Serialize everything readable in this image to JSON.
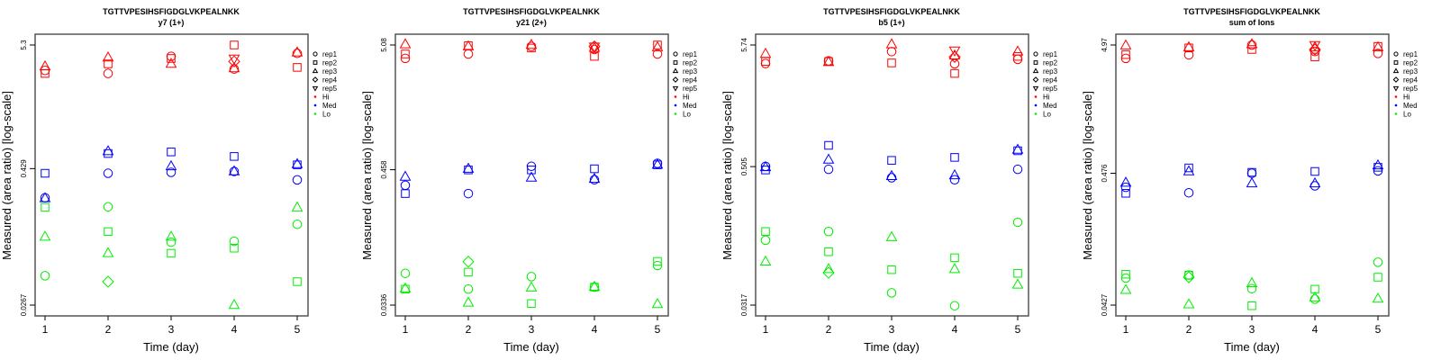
{
  "colors": {
    "Hi": "#ff0000",
    "Med": "#0000ff",
    "Lo": "#00ee00"
  },
  "legend": {
    "reps": [
      {
        "label": "rep1",
        "shape": "circle"
      },
      {
        "label": "rep2",
        "shape": "square"
      },
      {
        "label": "rep3",
        "shape": "triangle"
      },
      {
        "label": "rep4",
        "shape": "diamond"
      },
      {
        "label": "rep5",
        "shape": "inverted-triangle"
      }
    ],
    "groups": [
      "Hi",
      "Med",
      "Lo"
    ]
  },
  "chart_data": [
    {
      "type": "scatter",
      "title": "TGTTVPESIHSFIGDGLVKPEALNKK",
      "subtitle": "y7 (1+)",
      "xlabel": "Time (day)",
      "ylabel": "Measured (area ratio) [log-scale]",
      "yscale": "log",
      "yticks": [
        0.0267,
        0.429,
        5.3
      ],
      "ytick_labels": [
        "0.0267",
        "0.429",
        "5.3"
      ],
      "xticks": [
        "1",
        "2",
        "3",
        "4",
        "5"
      ],
      "legend_position": "right",
      "series": {
        "Hi": [
          [
            1,
            "rep1",
            3.16
          ],
          [
            1,
            "rep2",
            2.97
          ],
          [
            1,
            "rep3",
            3.42
          ],
          [
            2,
            "rep1",
            2.97
          ],
          [
            2,
            "rep2",
            3.61
          ],
          [
            2,
            "rep3",
            4.1
          ],
          [
            3,
            "rep1",
            4.21
          ],
          [
            3,
            "rep2",
            4.03
          ],
          [
            3,
            "rep3",
            3.61
          ],
          [
            4,
            "rep1",
            3.25
          ],
          [
            4,
            "rep2",
            5.3
          ],
          [
            4,
            "rep3",
            3.29
          ],
          [
            4,
            "rep4",
            3.79
          ],
          [
            4,
            "rep5",
            4.03
          ],
          [
            5,
            "rep1",
            4.47
          ],
          [
            5,
            "rep2",
            3.36
          ],
          [
            5,
            "rep3",
            4.55
          ]
        ],
        "Med": [
          [
            1,
            "rep1",
            0.237
          ],
          [
            1,
            "rep2",
            0.39
          ],
          [
            1,
            "rep3",
            0.234
          ],
          [
            2,
            "rep1",
            0.39
          ],
          [
            2,
            "rep2",
            0.583
          ],
          [
            2,
            "rep3",
            0.609
          ],
          [
            3,
            "rep1",
            0.397
          ],
          [
            3,
            "rep2",
            0.602
          ],
          [
            3,
            "rep3",
            0.449
          ],
          [
            4,
            "rep1",
            0.405
          ],
          [
            4,
            "rep2",
            0.549
          ],
          [
            4,
            "rep3",
            0.405
          ],
          [
            5,
            "rep1",
            0.341
          ],
          [
            5,
            "rep2",
            0.463
          ],
          [
            5,
            "rep3",
            0.469
          ]
        ],
        "Lo": [
          [
            1,
            "rep1",
            0.0485
          ],
          [
            1,
            "rep2",
            0.195
          ],
          [
            1,
            "rep3",
            0.107
          ],
          [
            2,
            "rep1",
            0.197
          ],
          [
            2,
            "rep2",
            0.119
          ],
          [
            2,
            "rep3",
            0.0766
          ],
          [
            2,
            "rep4",
            0.043
          ],
          [
            3,
            "rep1",
            0.096
          ],
          [
            3,
            "rep2",
            0.0766
          ],
          [
            3,
            "rep3",
            0.107
          ],
          [
            4,
            "rep1",
            0.0978
          ],
          [
            4,
            "rep2",
            0.085
          ],
          [
            4,
            "rep3",
            0.0267
          ],
          [
            5,
            "rep1",
            0.138
          ],
          [
            5,
            "rep2",
            0.043
          ],
          [
            5,
            "rep3",
            0.194
          ]
        ]
      }
    },
    {
      "type": "scatter",
      "title": "TGTTVPESIHSFIGDGLVKPEALNKK",
      "subtitle": "y21 (2+)",
      "xlabel": "Time (day)",
      "ylabel": "Measured (area ratio) [log-scale]",
      "yscale": "log",
      "yticks": [
        0.0336,
        0.458,
        5.08
      ],
      "ytick_labels": [
        "0.0336",
        "0.458",
        "5.08"
      ],
      "xticks": [
        "1",
        "2",
        "3",
        "4",
        "5"
      ],
      "legend_position": "right",
      "series": {
        "Hi": [
          [
            1,
            "rep1",
            3.92
          ],
          [
            1,
            "rep2",
            4.27
          ],
          [
            1,
            "rep3",
            5.14
          ],
          [
            2,
            "rep1",
            4.27
          ],
          [
            2,
            "rep2",
            5.02
          ],
          [
            2,
            "rep3",
            4.94
          ],
          [
            3,
            "rep1",
            4.94
          ],
          [
            3,
            "rep2",
            4.79
          ],
          [
            3,
            "rep3",
            5.08
          ],
          [
            4,
            "rep1",
            4.66
          ],
          [
            4,
            "rep2",
            4.08
          ],
          [
            4,
            "rep3",
            4.79
          ],
          [
            4,
            "rep4",
            4.94
          ],
          [
            4,
            "rep5",
            4.94
          ],
          [
            5,
            "rep1",
            4.27
          ],
          [
            5,
            "rep2",
            5.08
          ],
          [
            5,
            "rep3",
            4.85
          ]
        ],
        "Med": [
          [
            1,
            "rep1",
            0.339
          ],
          [
            1,
            "rep2",
            0.289
          ],
          [
            1,
            "rep3",
            0.399
          ],
          [
            2,
            "rep1",
            0.289
          ],
          [
            2,
            "rep2",
            0.456
          ],
          [
            2,
            "rep3",
            0.466
          ],
          [
            3,
            "rep1",
            0.489
          ],
          [
            3,
            "rep2",
            0.456
          ],
          [
            3,
            "rep3",
            0.392
          ],
          [
            4,
            "rep1",
            0.377
          ],
          [
            4,
            "rep2",
            0.466
          ],
          [
            4,
            "rep3",
            0.383
          ],
          [
            5,
            "rep1",
            0.518
          ],
          [
            5,
            "rep2",
            0.503
          ],
          [
            5,
            "rep3",
            0.503
          ]
        ],
        "Lo": [
          [
            1,
            "rep1",
            0.062
          ],
          [
            1,
            "rep2",
            0.0457
          ],
          [
            1,
            "rep3",
            0.0462
          ],
          [
            2,
            "rep1",
            0.0457
          ],
          [
            2,
            "rep2",
            0.0635
          ],
          [
            2,
            "rep3",
            0.0352
          ],
          [
            2,
            "rep4",
            0.0777
          ],
          [
            3,
            "rep1",
            0.0582
          ],
          [
            3,
            "rep2",
            0.0346
          ],
          [
            3,
            "rep3",
            0.047
          ],
          [
            4,
            "rep1",
            0.0475
          ],
          [
            4,
            "rep2",
            0.0475
          ],
          [
            4,
            "rep3",
            0.0478
          ],
          [
            5,
            "rep1",
            0.0721
          ],
          [
            5,
            "rep2",
            0.0781
          ],
          [
            5,
            "rep3",
            0.0342
          ]
        ]
      }
    },
    {
      "type": "scatter",
      "title": "TGTTVPESIHSFIGDGLVKPEALNKK",
      "subtitle": "b5 (1+)",
      "xlabel": "Time (day)",
      "ylabel": "Measured (area ratio) [log-scale]",
      "yscale": "log",
      "yticks": [
        0.0317,
        0.505,
        5.74
      ],
      "ytick_labels": [
        "0.0317",
        "0.505",
        "5.74"
      ],
      "xticks": [
        "1",
        "2",
        "3",
        "4",
        "5"
      ],
      "legend_position": "right",
      "series": {
        "Hi": [
          [
            1,
            "rep1",
            3.96
          ],
          [
            1,
            "rep2",
            4.13
          ],
          [
            1,
            "rep3",
            4.8
          ],
          [
            2,
            "rep1",
            4.18
          ],
          [
            2,
            "rep2",
            4.13
          ],
          [
            2,
            "rep3",
            4.08
          ],
          [
            3,
            "rep1",
            5.03
          ],
          [
            3,
            "rep2",
            4.01
          ],
          [
            3,
            "rep3",
            5.81
          ],
          [
            4,
            "rep1",
            3.94
          ],
          [
            4,
            "rep2",
            3.25
          ],
          [
            4,
            "rep3",
            4.65
          ],
          [
            4,
            "rep4",
            4.52
          ],
          [
            4,
            "rep5",
            5.15
          ],
          [
            5,
            "rep1",
            4.31
          ],
          [
            5,
            "rep2",
            4.57
          ],
          [
            5,
            "rep3",
            5.03
          ]
        ],
        "Med": [
          [
            1,
            "rep1",
            0.507
          ],
          [
            1,
            "rep2",
            0.472
          ],
          [
            1,
            "rep3",
            0.498
          ],
          [
            2,
            "rep1",
            0.478
          ],
          [
            2,
            "rep2",
            0.772
          ],
          [
            2,
            "rep3",
            0.579
          ],
          [
            3,
            "rep1",
            0.404
          ],
          [
            3,
            "rep2",
            0.572
          ],
          [
            3,
            "rep3",
            0.417
          ],
          [
            4,
            "rep1",
            0.388
          ],
          [
            4,
            "rep2",
            0.607
          ],
          [
            4,
            "rep3",
            0.424
          ],
          [
            5,
            "rep1",
            0.478
          ],
          [
            5,
            "rep2",
            0.693
          ],
          [
            5,
            "rep3",
            0.706
          ]
        ],
        "Lo": [
          [
            1,
            "rep1",
            0.116
          ],
          [
            1,
            "rep2",
            0.138
          ],
          [
            1,
            "rep3",
            0.0755
          ],
          [
            2,
            "rep1",
            0.138
          ],
          [
            2,
            "rep2",
            0.0921
          ],
          [
            2,
            "rep3",
            0.065
          ],
          [
            2,
            "rep4",
            0.0605
          ],
          [
            3,
            "rep1",
            0.0405
          ],
          [
            3,
            "rep2",
            0.0643
          ],
          [
            3,
            "rep3",
            0.123
          ],
          [
            4,
            "rep1",
            0.0313
          ],
          [
            4,
            "rep2",
            0.0817
          ],
          [
            4,
            "rep3",
            0.065
          ],
          [
            5,
            "rep1",
            0.166
          ],
          [
            5,
            "rep2",
            0.0598
          ],
          [
            5,
            "rep3",
            0.0476
          ]
        ]
      }
    },
    {
      "type": "scatter",
      "title": "TGTTVPESIHSFIGDGLVKPEALNKK",
      "subtitle": "sum of Ions",
      "xlabel": "Time (day)",
      "ylabel": "Measured (area ratio) [log-scale]",
      "yscale": "log",
      "yticks": [
        0.0427,
        0.476,
        4.97
      ],
      "ytick_labels": [
        "0.0427",
        "0.476",
        "4.97"
      ],
      "xticks": [
        "1",
        "2",
        "3",
        "4",
        "5"
      ],
      "legend_position": "right",
      "series": {
        "Hi": [
          [
            1,
            "rep1",
            3.89
          ],
          [
            1,
            "rep2",
            4.17
          ],
          [
            1,
            "rep3",
            4.92
          ],
          [
            2,
            "rep1",
            4.15
          ],
          [
            2,
            "rep2",
            4.71
          ],
          [
            2,
            "rep3",
            4.76
          ],
          [
            3,
            "rep1",
            4.97
          ],
          [
            3,
            "rep2",
            4.58
          ],
          [
            3,
            "rep3",
            5.03
          ],
          [
            4,
            "rep1",
            4.41
          ],
          [
            4,
            "rep2",
            3.99
          ],
          [
            4,
            "rep3",
            4.76
          ],
          [
            4,
            "rep4",
            4.58
          ],
          [
            4,
            "rep5",
            4.97
          ],
          [
            5,
            "rep1",
            4.26
          ],
          [
            5,
            "rep2",
            4.84
          ],
          [
            5,
            "rep3",
            4.76
          ]
        ],
        "Med": [
          [
            1,
            "rep1",
            0.368
          ],
          [
            1,
            "rep2",
            0.33
          ],
          [
            1,
            "rep3",
            0.4
          ],
          [
            2,
            "rep1",
            0.333
          ],
          [
            2,
            "rep2",
            0.525
          ],
          [
            2,
            "rep3",
            0.492
          ],
          [
            3,
            "rep1",
            0.476
          ],
          [
            3,
            "rep2",
            0.484
          ],
          [
            3,
            "rep3",
            0.395
          ],
          [
            4,
            "rep1",
            0.378
          ],
          [
            4,
            "rep2",
            0.492
          ],
          [
            4,
            "rep3",
            0.395
          ],
          [
            5,
            "rep1",
            0.497
          ],
          [
            5,
            "rep2",
            0.531
          ],
          [
            5,
            "rep3",
            0.549
          ]
        ],
        "Lo": [
          [
            1,
            "rep1",
            0.0699
          ],
          [
            1,
            "rep2",
            0.0751
          ],
          [
            1,
            "rep3",
            0.0562
          ],
          [
            2,
            "rep1",
            0.0739
          ],
          [
            2,
            "rep2",
            0.0739
          ],
          [
            2,
            "rep3",
            0.0432
          ],
          [
            2,
            "rep4",
            0.0711
          ],
          [
            3,
            "rep1",
            0.0577
          ],
          [
            3,
            "rep2",
            0.0422
          ],
          [
            3,
            "rep3",
            0.0637
          ],
          [
            4,
            "rep1",
            0.0476
          ],
          [
            4,
            "rep2",
            0.0571
          ],
          [
            4,
            "rep3",
            0.049
          ],
          [
            5,
            "rep1",
            0.0935
          ],
          [
            5,
            "rep2",
            0.0711
          ],
          [
            5,
            "rep3",
            0.0479
          ]
        ]
      }
    }
  ]
}
